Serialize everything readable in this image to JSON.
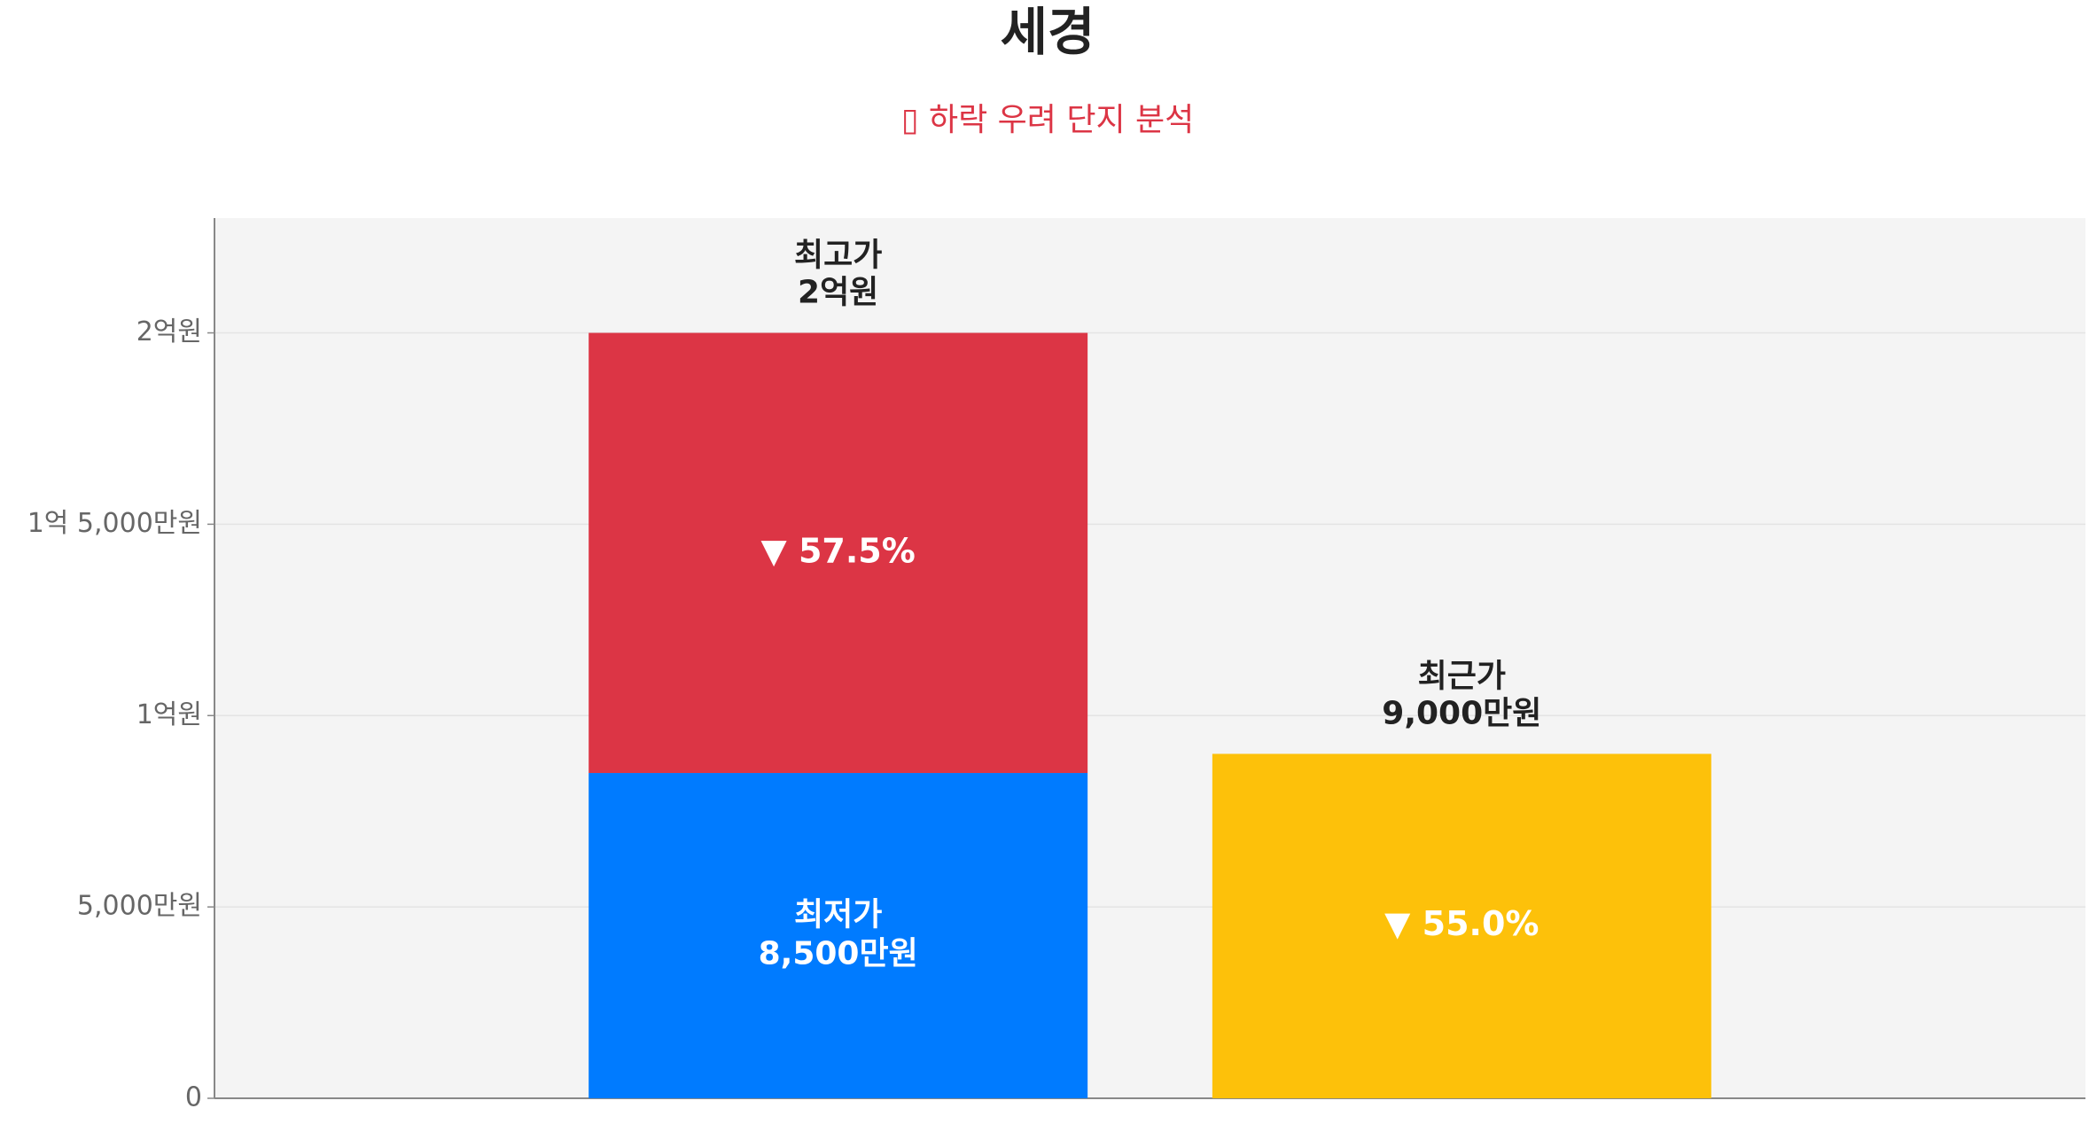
{
  "chart_data": {
    "type": "bar",
    "title": "세경",
    "subtitle": "▯ 하락 우려 단지 분석",
    "categories": [
      null,
      null
    ],
    "series": [
      {
        "name": "최저가",
        "color": "#007bff",
        "values": [
          8500,
          null
        ],
        "value_labels": [
          "8,500만원",
          null
        ]
      },
      {
        "name": "최고가",
        "color": "#dc3545",
        "values": [
          11500,
          null
        ]
      },
      {
        "name": "최근가",
        "color": "#fdc10a",
        "values": [
          null,
          9000
        ]
      }
    ],
    "top_labels": [
      {
        "value": 20000,
        "label": "2억원"
      },
      {
        "value": 9000,
        "label": "9,000만원"
      }
    ],
    "drop_labels": [
      {
        "value": 57.5,
        "label": "▼ 57.5%"
      },
      {
        "value": 55.0,
        "label": "▼ 55.0%"
      }
    ],
    "ylim": [
      0,
      23000
    ],
    "yticks": [
      0,
      {
        "value": 5000,
        "label": "5,000만원"
      },
      {
        "value": 10000,
        "label": "1억원"
      },
      {
        "value": 15000,
        "label": "1억 5,000만원"
      },
      {
        "value": 20000,
        "label": "2억원"
      }
    ],
    "grid": true,
    "legend": false
  }
}
